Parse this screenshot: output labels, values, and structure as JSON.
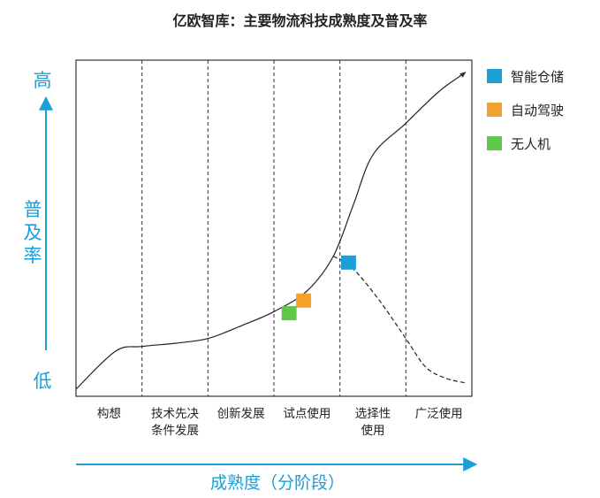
{
  "chart_data": {
    "type": "line",
    "title": "亿欧智库：主要物流科技成熟度及普及率",
    "xlabel": "成熟度（分阶段）",
    "ylabel": "普及率",
    "y_high_label": "高",
    "y_low_label": "低",
    "stages": [
      {
        "lines": [
          "构想"
        ]
      },
      {
        "lines": [
          "技术先决",
          "条件发展"
        ]
      },
      {
        "lines": [
          "创新发展"
        ]
      },
      {
        "lines": [
          "试点使用"
        ]
      },
      {
        "lines": [
          "选择性",
          "使用"
        ]
      },
      {
        "lines": [
          "广泛使用"
        ]
      }
    ],
    "xlim": [
      0,
      6
    ],
    "ylim": [
      0,
      1
    ],
    "adoption_curve": [
      [
        0,
        0
      ],
      [
        0.6,
        0.12
      ],
      [
        1.0,
        0.135
      ],
      [
        1.5,
        0.145
      ],
      [
        2.0,
        0.16
      ],
      [
        2.5,
        0.2
      ],
      [
        3.0,
        0.245
      ],
      [
        3.5,
        0.31
      ],
      [
        3.9,
        0.42
      ],
      [
        4.2,
        0.58
      ],
      [
        4.5,
        0.74
      ],
      [
        5.0,
        0.84
      ],
      [
        5.5,
        0.94
      ],
      [
        5.9,
        1.0
      ]
    ],
    "decline_curve": [
      [
        3.9,
        0.42
      ],
      [
        4.2,
        0.38
      ],
      [
        4.6,
        0.28
      ],
      [
        5.0,
        0.16
      ],
      [
        5.3,
        0.07
      ],
      [
        5.6,
        0.035
      ],
      [
        5.9,
        0.02
      ]
    ],
    "series": [
      {
        "name": "智能仓储",
        "color": "#1a9fd6",
        "x": 4.13,
        "y": 0.4
      },
      {
        "name": "自动驾驶",
        "color": "#f5a02a",
        "x": 3.45,
        "y": 0.28
      },
      {
        "name": "无人机",
        "color": "#5dc84a",
        "x": 3.23,
        "y": 0.24
      }
    ],
    "legend_position": "right",
    "axis_color": "#1a9fd6"
  }
}
